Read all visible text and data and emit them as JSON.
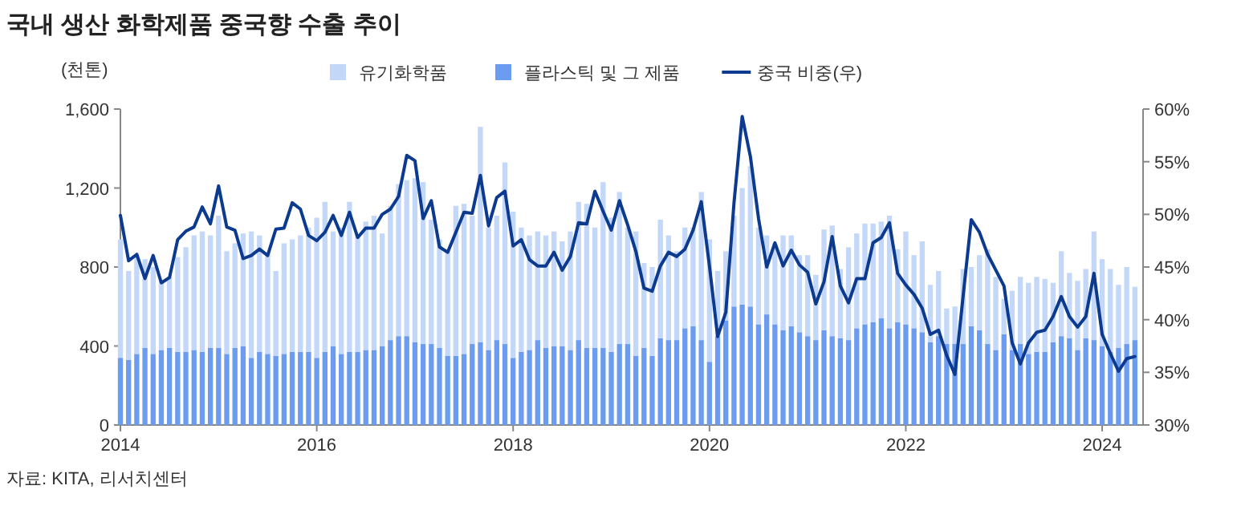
{
  "chart_data": {
    "type": "bar",
    "stacked": true,
    "title": "국내 생산 화학제품 중국향 수출 추이",
    "ylabel": "(천톤)",
    "annotations": [
      "자료: KITA, 리서치센터"
    ],
    "x": [
      "2014-01",
      "2014-02",
      "2014-03",
      "2014-04",
      "2014-05",
      "2014-06",
      "2014-07",
      "2014-08",
      "2014-09",
      "2014-10",
      "2014-11",
      "2014-12",
      "2015-01",
      "2015-02",
      "2015-03",
      "2015-04",
      "2015-05",
      "2015-06",
      "2015-07",
      "2015-08",
      "2015-09",
      "2015-10",
      "2015-11",
      "2015-12",
      "2016-01",
      "2016-02",
      "2016-03",
      "2016-04",
      "2016-05",
      "2016-06",
      "2016-07",
      "2016-08",
      "2016-09",
      "2016-10",
      "2016-11",
      "2016-12",
      "2017-01",
      "2017-02",
      "2017-03",
      "2017-04",
      "2017-05",
      "2017-06",
      "2017-07",
      "2017-08",
      "2017-09",
      "2017-10",
      "2017-11",
      "2017-12",
      "2018-01",
      "2018-02",
      "2018-03",
      "2018-04",
      "2018-05",
      "2018-06",
      "2018-07",
      "2018-08",
      "2018-09",
      "2018-10",
      "2018-11",
      "2018-12",
      "2019-01",
      "2019-02",
      "2019-03",
      "2019-04",
      "2019-05",
      "2019-06",
      "2019-07",
      "2019-08",
      "2019-09",
      "2019-10",
      "2019-11",
      "2019-12",
      "2020-01",
      "2020-02",
      "2020-03",
      "2020-04",
      "2020-05",
      "2020-06",
      "2020-07",
      "2020-08",
      "2020-09",
      "2020-10",
      "2020-11",
      "2020-12",
      "2021-01",
      "2021-02",
      "2021-03",
      "2021-04",
      "2021-05",
      "2021-06",
      "2021-07",
      "2021-08",
      "2021-09",
      "2021-10",
      "2021-11",
      "2021-12",
      "2022-01",
      "2022-02",
      "2022-03",
      "2022-04",
      "2022-05",
      "2022-06",
      "2022-07",
      "2022-08",
      "2022-09",
      "2022-10",
      "2022-11",
      "2022-12",
      "2023-01",
      "2023-02",
      "2023-03",
      "2023-04",
      "2023-05",
      "2023-06",
      "2023-07",
      "2023-08",
      "2023-09",
      "2023-10",
      "2023-11",
      "2023-12",
      "2024-01",
      "2024-02",
      "2024-03",
      "2024-04",
      "2024-05"
    ],
    "series": [
      {
        "name": "플라스틱 및 그 제품",
        "color": "#6c9cf0",
        "values": [
          340,
          330,
          360,
          390,
          360,
          380,
          390,
          370,
          370,
          380,
          370,
          390,
          390,
          360,
          390,
          400,
          340,
          370,
          360,
          350,
          360,
          370,
          370,
          370,
          340,
          370,
          400,
          360,
          370,
          370,
          380,
          380,
          400,
          430,
          450,
          450,
          420,
          410,
          410,
          390,
          350,
          350,
          360,
          410,
          420,
          380,
          430,
          410,
          340,
          370,
          380,
          430,
          390,
          400,
          400,
          380,
          430,
          390,
          390,
          390,
          370,
          410,
          410,
          350,
          390,
          350,
          440,
          430,
          430,
          490,
          500,
          430,
          320,
          450,
          530,
          600,
          610,
          600,
          510,
          560,
          510,
          480,
          500,
          470,
          450,
          430,
          480,
          450,
          440,
          430,
          490,
          510,
          520,
          540,
          490,
          520,
          510,
          490,
          470,
          420,
          450,
          410,
          410,
          410,
          500,
          480,
          410,
          380,
          460,
          380,
          410,
          360,
          370,
          370,
          420,
          450,
          440,
          380,
          440,
          430,
          400,
          370,
          390,
          410,
          430
        ]
      },
      {
        "name": "유기화학품",
        "color": "#c3d7f8",
        "values": [
          600,
          450,
          490,
          450,
          440,
          350,
          360,
          480,
          530,
          580,
          610,
          570,
          670,
          520,
          530,
          570,
          640,
          590,
          510,
          430,
          560,
          570,
          590,
          630,
          710,
          760,
          580,
          640,
          760,
          590,
          650,
          680,
          570,
          680,
          770,
          790,
          830,
          820,
          630,
          550,
          530,
          760,
          760,
          650,
          1090,
          620,
          630,
          920,
          740,
          630,
          580,
          550,
          570,
          580,
          530,
          600,
          700,
          730,
          610,
          840,
          680,
          770,
          590,
          630,
          430,
          450,
          600,
          530,
          450,
          510,
          500,
          750,
          620,
          330,
          350,
          460,
          590,
          710,
          490,
          400,
          410,
          480,
          460,
          390,
          410,
          330,
          510,
          560,
          350,
          470,
          480,
          510,
          500,
          490,
          570,
          370,
          470,
          370,
          460,
          290,
          330,
          180,
          190,
          380,
          300,
          380,
          480,
          370,
          180,
          300,
          340,
          360,
          380,
          370,
          300,
          430,
          330,
          350,
          350,
          550,
          440,
          420,
          320,
          390,
          270
        ]
      },
      {
        "name": "중국 비중(우)",
        "type": "line",
        "axis": "y2",
        "color": "#0c3a8e",
        "values": [
          49.9,
          45.6,
          46.2,
          43.9,
          46.1,
          43.5,
          44.0,
          47.6,
          48.4,
          48.8,
          50.7,
          49.1,
          52.7,
          48.8,
          48.5,
          45.8,
          46.1,
          46.7,
          46.1,
          48.6,
          48.7,
          51.1,
          50.5,
          48.0,
          47.5,
          48.3,
          49.9,
          48.0,
          50.2,
          47.8,
          48.7,
          48.7,
          50.0,
          50.5,
          51.7,
          55.6,
          55.1,
          49.6,
          51.3,
          46.9,
          46.4,
          48.3,
          50.2,
          50.1,
          53.7,
          48.9,
          51.6,
          52.2,
          47.0,
          47.6,
          45.7,
          45.1,
          45.1,
          46.4,
          44.7,
          46.0,
          49.2,
          49.1,
          52.2,
          50.3,
          48.5,
          51.3,
          49.0,
          46.5,
          43.0,
          42.7,
          45.1,
          46.4,
          46.0,
          46.7,
          48.5,
          51.2,
          45.1,
          38.4,
          40.7,
          51.1,
          59.3,
          55.5,
          49.6,
          45.0,
          47.3,
          45.1,
          46.6,
          45.2,
          44.5,
          41.5,
          43.6,
          47.9,
          43.2,
          41.6,
          43.9,
          43.9,
          47.3,
          47.8,
          49.2,
          44.4,
          43.3,
          42.4,
          41.1,
          38.6,
          39.0,
          36.6,
          34.8,
          42.2,
          49.5,
          48.3,
          46.2,
          44.7,
          43.2,
          37.8,
          35.8,
          37.8,
          38.8,
          39.0,
          40.3,
          42.2,
          40.3,
          39.3,
          40.3,
          44.4,
          38.6,
          36.8,
          35.1,
          36.3,
          36.5
        ]
      }
    ],
    "xlim": [
      "2014-01",
      "2024-06"
    ],
    "xticks": [
      "2014",
      "2016",
      "2018",
      "2020",
      "2022",
      "2024"
    ],
    "ylim": [
      0,
      1600
    ],
    "yticks": [
      0,
      400,
      800,
      "1,200",
      "1,600"
    ],
    "y2lim": [
      30,
      60
    ],
    "y2ticks": [
      {
        "value": 30,
        "label": "30%"
      },
      {
        "value": 35,
        "label": "35%"
      },
      {
        "value": 40,
        "label": "40%"
      },
      {
        "value": 45,
        "label": "45%"
      },
      {
        "value": 50,
        "label": "50%"
      },
      {
        "value": 55,
        "label": "55%"
      },
      {
        "value": 60,
        "label": "60%"
      }
    ],
    "legend": "top"
  }
}
